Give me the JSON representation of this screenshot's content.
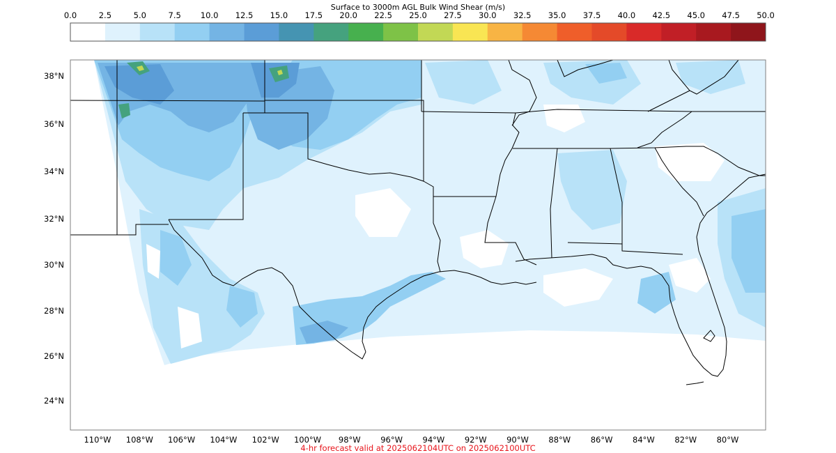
{
  "title": "Surface to 3000m AGL Bulk Wind Shear (m/s)",
  "caption": "4-hr forecast valid at 2025062104UTC on 2025062100UTC",
  "colorbar": {
    "ticks": [
      "0.0",
      "2.5",
      "5.0",
      "7.5",
      "10.0",
      "12.5",
      "15.0",
      "17.5",
      "20.0",
      "22.5",
      "25.0",
      "27.5",
      "30.0",
      "32.5",
      "35.0",
      "37.5",
      "40.0",
      "42.5",
      "45.0",
      "47.5",
      "50.0"
    ],
    "colors": [
      "#ffffff",
      "#dff2fd",
      "#b8e2f8",
      "#93cff2",
      "#74b4e4",
      "#5b9dd7",
      "#4594b2",
      "#45a27e",
      "#47b04e",
      "#7ec247",
      "#c2d855",
      "#f9e553",
      "#f8b444",
      "#f58934",
      "#ef5e2a",
      "#e44a29",
      "#d92a29",
      "#c11f26",
      "#a8191f",
      "#8f151b"
    ]
  },
  "map": {
    "lat_labels": [
      "38°N",
      "36°N",
      "34°N",
      "32°N",
      "30°N",
      "28°N",
      "26°N",
      "24°N"
    ],
    "lon_labels": [
      "110°W",
      "108°W",
      "106°W",
      "104°W",
      "102°W",
      "100°W",
      "98°W",
      "96°W",
      "94°W",
      "92°W",
      "90°W",
      "88°W",
      "86°W",
      "84°W",
      "82°W",
      "80°W"
    ],
    "colors": {
      "background": "#ffffff",
      "nodata": "#ffffff",
      "border": "#000000",
      "frame": "#7f7f7f"
    }
  }
}
